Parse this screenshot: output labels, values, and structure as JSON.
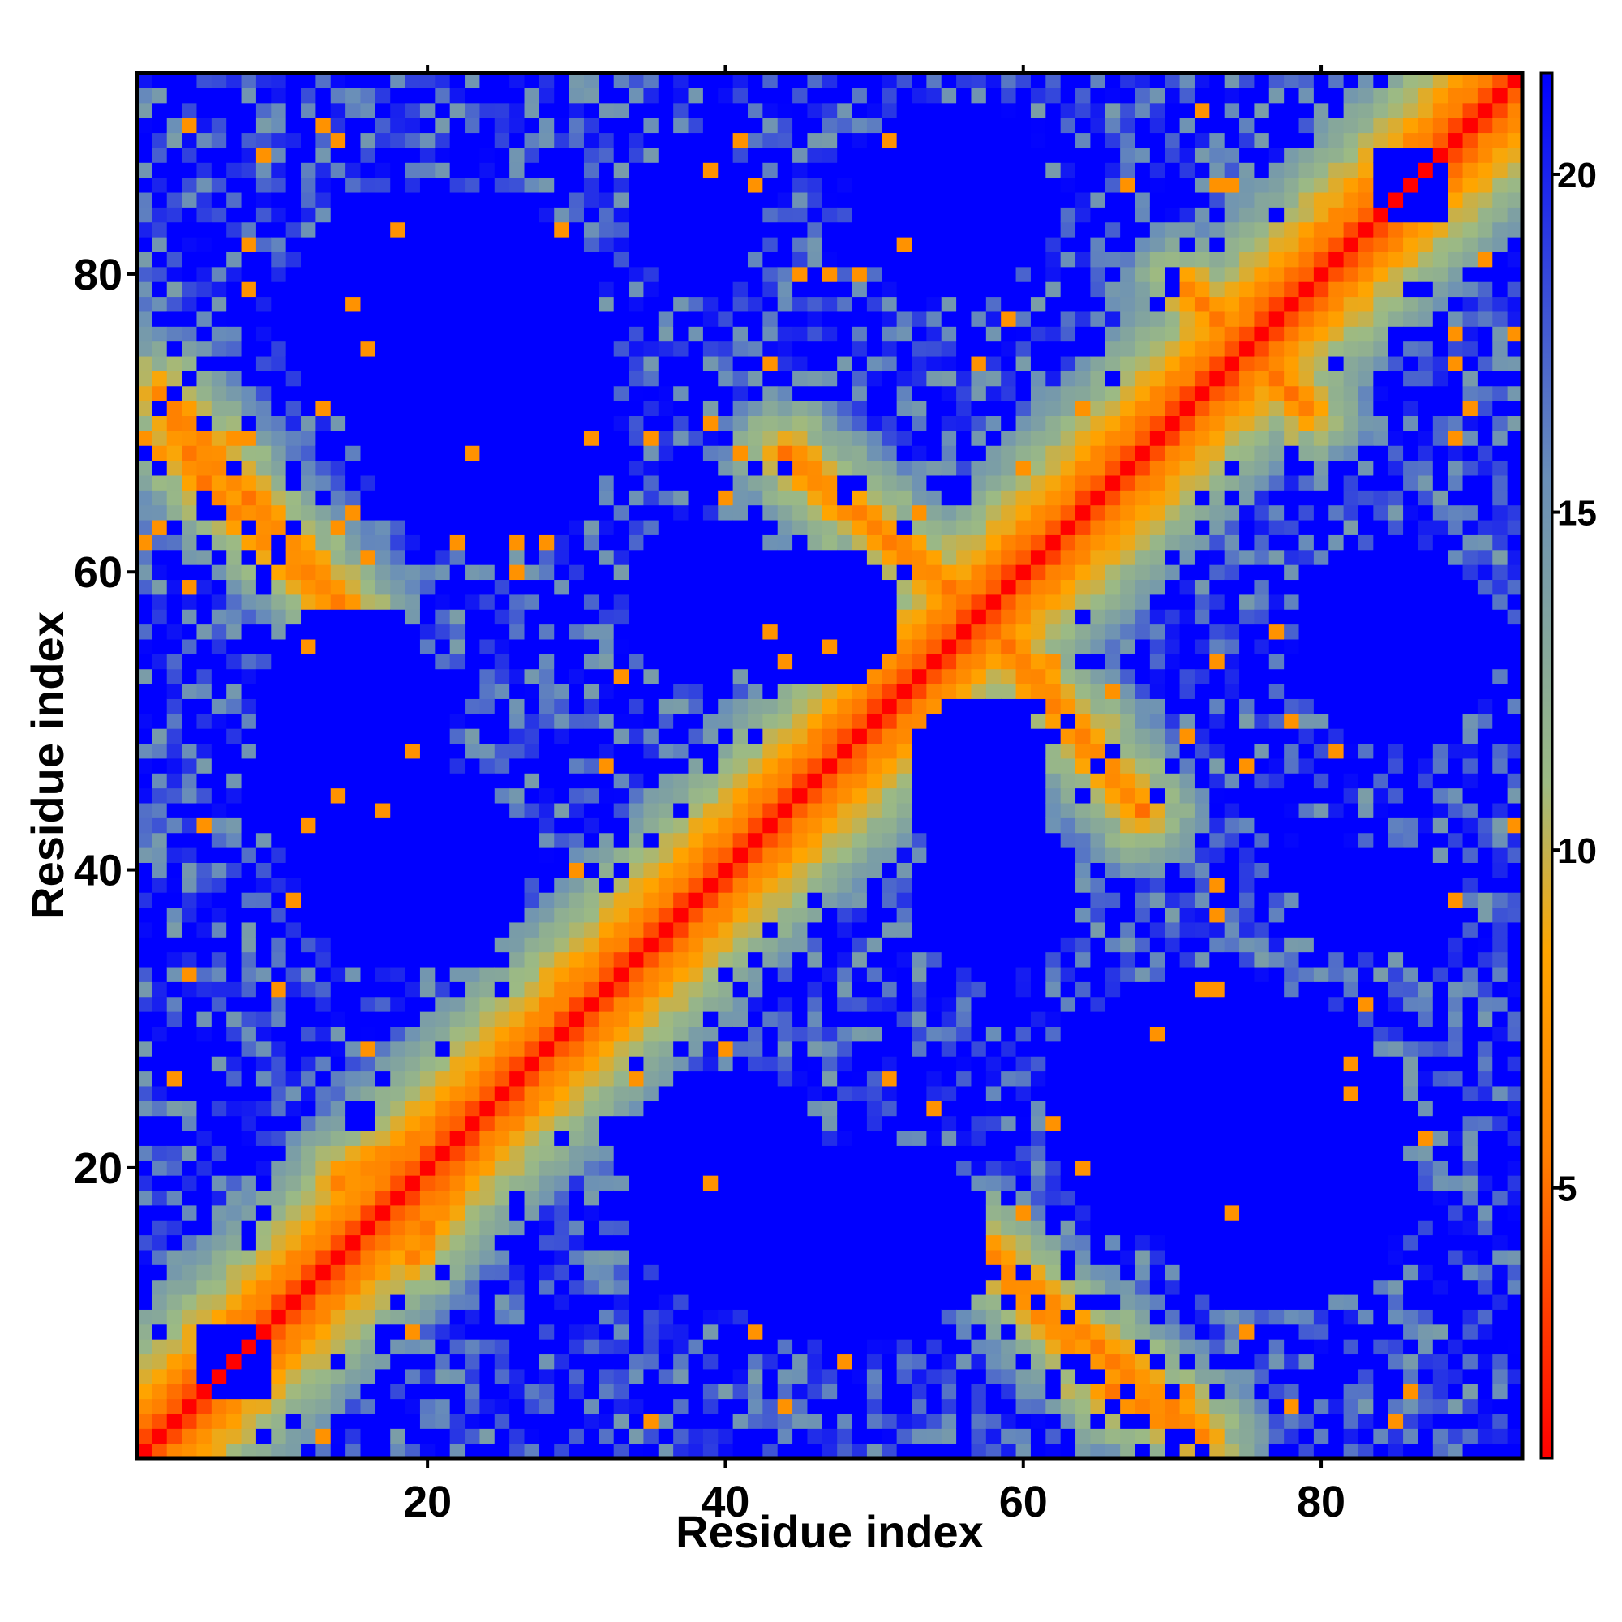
{
  "chart_data": {
    "type": "heatmap",
    "title": "",
    "xlabel": "Residue index",
    "ylabel": "Residue index",
    "n_residues": 93,
    "xlim": [
      0.5,
      93.5
    ],
    "ylim": [
      0.5,
      93.5
    ],
    "x_ticks": [
      20,
      40,
      60,
      80
    ],
    "y_ticks": [
      20,
      40,
      60,
      80
    ],
    "x_tick_labels": [
      "20",
      "40",
      "60",
      "80"
    ],
    "y_tick_labels": [
      "20",
      "40",
      "60",
      "80"
    ],
    "colorbar": {
      "range": [
        1,
        21.5
      ],
      "ticks": [
        5,
        10,
        15,
        20
      ],
      "tick_labels": [
        "5",
        "10",
        "15",
        "20"
      ],
      "colors": [
        "#ff0000",
        "#ff7f00",
        "#ffa500",
        "#9cba84",
        "#6a8fb8",
        "#0000ff"
      ],
      "stops": [
        1,
        5.5,
        8.5,
        11,
        15.5,
        21.5
      ]
    },
    "cutoff_color": "#0000ff",
    "cutoff_value": 21.5,
    "diagonal_value": 1,
    "near_diagonal_values": [
      1,
      3.8,
      5.5,
      6.5,
      8.5,
      9.5,
      10.5,
      11.5,
      12.5,
      13.5,
      14.5
    ],
    "secondary_contacts": [
      {
        "from": [
          2,
          72
        ],
        "to": [
          14,
          58
        ]
      },
      {
        "from": [
          44,
          68
        ],
        "to": [
          55,
          59
        ]
      },
      {
        "from": [
          58,
          56
        ],
        "to": [
          68,
          44
        ]
      },
      {
        "from": [
          14,
          19
        ],
        "to": [
          25,
          25
        ]
      },
      {
        "from": [
          57,
          15
        ],
        "to": [
          66,
          5
        ]
      },
      {
        "from": [
          66,
          5
        ],
        "to": [
          72,
          2
        ]
      },
      {
        "from": [
          73,
          77
        ],
        "to": [
          79,
          71
        ]
      }
    ],
    "blue_regions": [
      {
        "center": [
          21,
          77
        ],
        "radius": [
          11,
          9
        ]
      },
      {
        "center": [
          72,
          24
        ],
        "radius": [
          11,
          9
        ]
      },
      {
        "center": [
          19,
          40
        ],
        "radius": [
          8,
          7
        ]
      },
      {
        "center": [
          48,
          15
        ],
        "radius": [
          10,
          7
        ]
      },
      {
        "center": [
          46,
          57
        ],
        "radius": [
          6,
          5
        ]
      },
      {
        "center": [
          58,
          38
        ],
        "radius": [
          6,
          5
        ]
      },
      {
        "center": [
          85,
          55
        ],
        "radius": [
          7,
          7
        ]
      },
      {
        "center": [
          56,
          84
        ],
        "radius": [
          5,
          6
        ]
      },
      {
        "center": [
          38,
          84
        ],
        "radius": [
          4,
          6
        ]
      },
      {
        "center": [
          86,
          86
        ],
        "radius": [
          3,
          3
        ]
      },
      {
        "center": [
          7,
          7
        ],
        "radius": [
          3,
          3
        ]
      }
    ]
  }
}
